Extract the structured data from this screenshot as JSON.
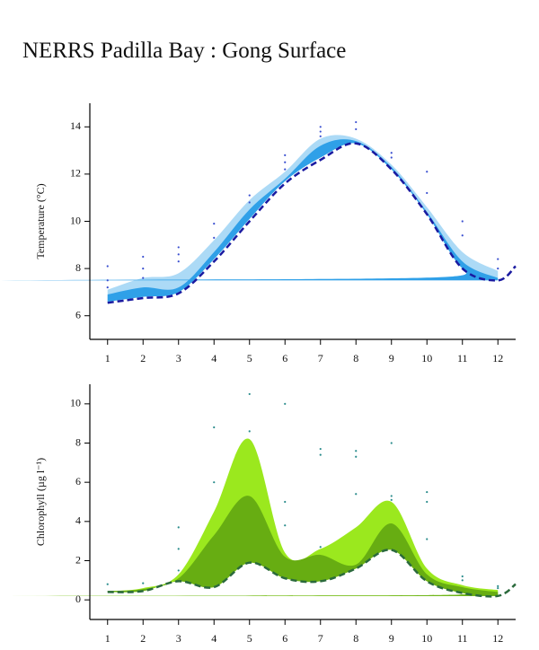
{
  "title": "NERRS Padilla Bay : Gong Surface",
  "chart_data": [
    {
      "type": "band",
      "ylabel": "Temperature (°C)",
      "xlim": [
        0.5,
        12.5
      ],
      "xticks": [
        1,
        2,
        3,
        4,
        5,
        6,
        7,
        8,
        9,
        10,
        11,
        12
      ],
      "ylim": [
        5,
        15
      ],
      "yticks": [
        6,
        8,
        10,
        12,
        14
      ],
      "x": [
        1,
        2,
        3,
        4,
        5,
        6,
        7,
        8,
        9,
        10,
        11,
        12
      ],
      "bands": [
        {
          "color": "#acdaf6",
          "upper": [
            7.1,
            7.6,
            7.8,
            9.2,
            10.9,
            12.1,
            13.5,
            13.5,
            12.4,
            10.6,
            8.7,
            7.9
          ],
          "lower": [
            6.6,
            6.8,
            7.0,
            8.4,
            10.1,
            11.7,
            12.7,
            13.3,
            12.2,
            10.3,
            8.0,
            7.5
          ]
        },
        {
          "color": "#2fa0e8",
          "upper": [
            6.9,
            7.2,
            7.2,
            8.7,
            10.5,
            11.8,
            13.2,
            13.4,
            12.3,
            10.4,
            8.3,
            7.6
          ],
          "lower": [
            6.6,
            6.8,
            7.0,
            8.4,
            10.1,
            11.7,
            12.7,
            13.3,
            12.2,
            10.3,
            8.0,
            7.5
          ]
        }
      ],
      "line": {
        "color": "#1a1aa0",
        "x": [
          1,
          2,
          3,
          4,
          5,
          6,
          7,
          8,
          9,
          10,
          11,
          12,
          12.5
        ],
        "values": [
          6.55,
          6.75,
          6.95,
          8.3,
          10.0,
          11.6,
          12.6,
          13.3,
          12.2,
          10.3,
          8.0,
          7.5,
          8.1
        ]
      },
      "points": {
        "color": "#3a4fd0",
        "x": [
          1,
          1,
          1,
          2,
          2,
          2,
          3,
          3,
          3,
          4,
          4,
          5,
          5,
          6,
          6,
          6,
          7,
          7,
          7,
          8,
          8,
          9,
          9,
          10,
          10,
          11,
          11,
          12,
          12
        ],
        "values": [
          8.1,
          7.5,
          7.2,
          8.5,
          8.0,
          7.6,
          8.9,
          8.6,
          8.3,
          9.9,
          9.3,
          11.1,
          10.8,
          12.8,
          12.5,
          12.2,
          14.0,
          13.8,
          13.6,
          14.2,
          13.9,
          12.9,
          12.7,
          12.1,
          11.2,
          10.0,
          9.4,
          8.4,
          8.0
        ]
      }
    },
    {
      "type": "band",
      "ylabel": "Chlorophyll (µg l⁻¹)",
      "xlim": [
        0.5,
        12.5
      ],
      "xticks": [
        1,
        2,
        3,
        4,
        5,
        6,
        7,
        8,
        9,
        10,
        11,
        12
      ],
      "ylim": [
        -1,
        11
      ],
      "yticks": [
        0,
        2,
        4,
        6,
        8,
        10
      ],
      "x": [
        1,
        2,
        3,
        4,
        5,
        6,
        7,
        8,
        9,
        10,
        11,
        12
      ],
      "bands": [
        {
          "color": "#9be81e",
          "upper": [
            0.45,
            0.6,
            1.3,
            4.5,
            8.2,
            2.4,
            2.6,
            3.7,
            5.0,
            1.6,
            0.75,
            0.5
          ],
          "lower": [
            0.4,
            0.45,
            0.95,
            0.65,
            1.9,
            1.1,
            0.95,
            1.6,
            2.55,
            0.95,
            0.35,
            0.2
          ]
        },
        {
          "color": "#67ad12",
          "upper": [
            0.45,
            0.55,
            1.1,
            3.3,
            5.3,
            2.2,
            2.3,
            1.8,
            3.9,
            1.3,
            0.65,
            0.4
          ],
          "lower": [
            0.4,
            0.45,
            0.95,
            0.65,
            1.9,
            1.1,
            0.95,
            1.6,
            2.55,
            0.95,
            0.35,
            0.2
          ]
        }
      ],
      "line": {
        "color": "#2b6a3c",
        "x": [
          1,
          2,
          3,
          4,
          5,
          6,
          7,
          8,
          9,
          10,
          11,
          12,
          12.5
        ],
        "values": [
          0.4,
          0.45,
          0.95,
          0.65,
          1.9,
          1.1,
          0.95,
          1.6,
          2.55,
          0.95,
          0.35,
          0.2,
          0.8
        ]
      },
      "points": {
        "color": "#2a8c8c",
        "x": [
          1,
          2,
          3,
          3,
          3,
          4,
          4,
          5,
          5,
          6,
          6,
          6,
          7,
          7,
          7,
          8,
          8,
          8,
          9,
          9,
          9,
          10,
          10,
          10,
          11,
          11,
          12,
          12
        ],
        "values": [
          0.8,
          0.85,
          3.7,
          2.6,
          1.5,
          8.8,
          6.0,
          10.5,
          8.6,
          10.0,
          5.0,
          3.8,
          7.7,
          7.4,
          2.7,
          7.6,
          7.3,
          5.4,
          8.0,
          5.3,
          5.1,
          5.5,
          5.0,
          3.1,
          1.2,
          1.0,
          0.7,
          0.6
        ]
      }
    }
  ]
}
